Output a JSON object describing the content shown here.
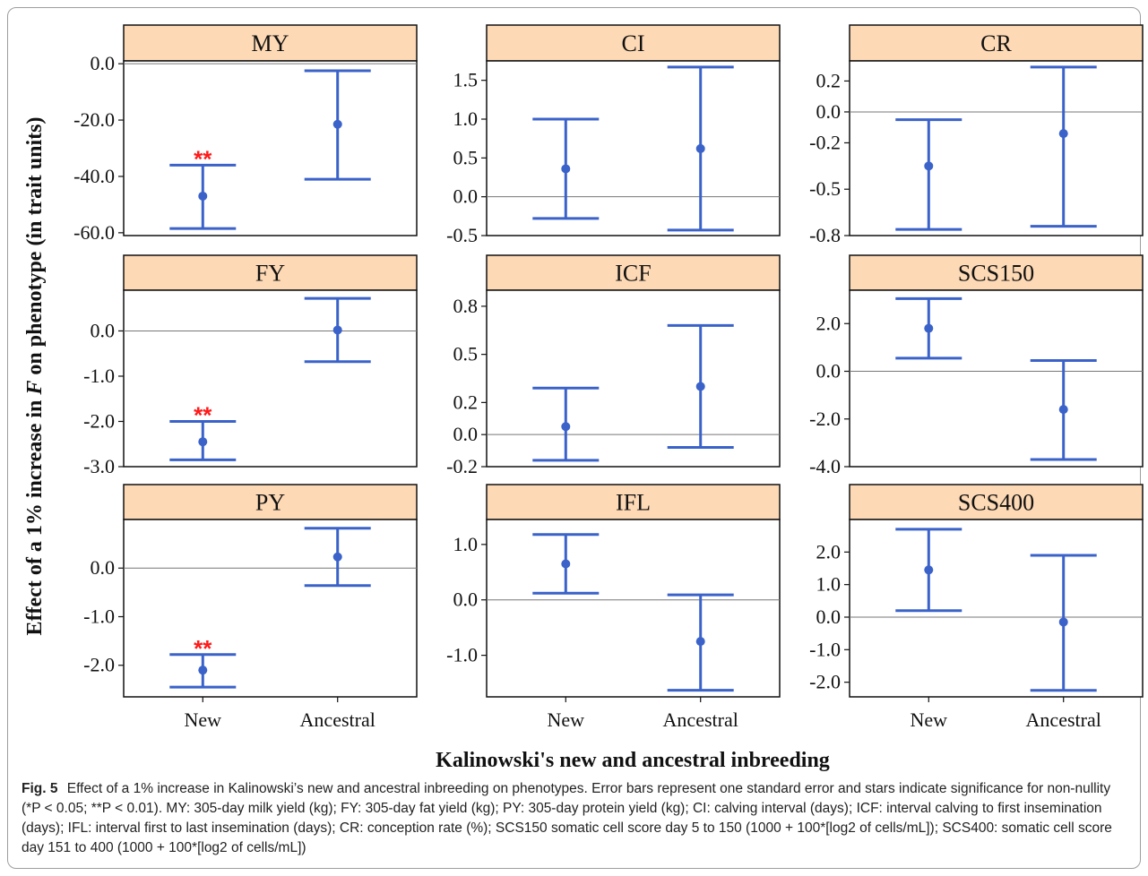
{
  "caption": {
    "label": "Fig. 5",
    "text": "Effect of a 1% increase in Kalinowski’s new and ancestral inbreeding on phenotypes. Error bars represent one standard error and stars indicate significance for non-nullity (*P < 0.05; **P < 0.01). MY: 305-day milk yield (kg); FY: 305-day fat yield (kg); PY: 305-day protein yield (kg); CI: calving interval (days); ICF: interval calving to first insemination (days); IFL: interval first to last insemination (days); CR: conception rate (%); SCS150 somatic cell score day 5 to 150 (1000 + 100*[log2 of cells/mL]); SCS400: somatic cell score day 151 to 400 (1000 + 100*[log2 of cells/mL])"
  },
  "chart_data": {
    "type": "errorbar",
    "xlabel": "Kalinowski's new and ancestral inbreeding",
    "ylabel_prefix": "Effect of a 1% increase in ",
    "ylabel_italic": "F",
    "ylabel_suffix": " on phenotype (in trait units)",
    "categories": [
      "New",
      "Ancestral"
    ],
    "panels": [
      {
        "title": "MY",
        "ylim": [
          -61,
          1
        ],
        "ticks": [
          0,
          -20,
          -40,
          -60
        ],
        "tick_labels": [
          "0.0",
          "-20.0",
          "-40.0",
          "-60.0"
        ],
        "points": [
          {
            "category": "New",
            "estimate": -47,
            "lower": -58.5,
            "upper": -36,
            "significance": "**"
          },
          {
            "category": "Ancestral",
            "estimate": -21.5,
            "lower": -41,
            "upper": -2.5,
            "significance": ""
          }
        ]
      },
      {
        "title": "CI",
        "ylim": [
          -0.5,
          1.75
        ],
        "ticks": [
          1.5,
          1.0,
          0.5,
          0.0,
          -0.5
        ],
        "tick_labels": [
          "1.5",
          "1.0",
          "0.5",
          "0.0",
          "-0.5"
        ],
        "points": [
          {
            "category": "New",
            "estimate": 0.36,
            "lower": -0.28,
            "upper": 1.0,
            "significance": ""
          },
          {
            "category": "Ancestral",
            "estimate": 0.62,
            "lower": -0.43,
            "upper": 1.67,
            "significance": ""
          }
        ]
      },
      {
        "title": "CR",
        "ylim": [
          -0.8,
          0.33
        ],
        "ticks": [
          0.2,
          0.0,
          -0.2,
          -0.5,
          -0.8
        ],
        "tick_labels": [
          "0.2",
          "0.0",
          "-0.2",
          "-0.5",
          "-0.8"
        ],
        "points": [
          {
            "category": "New",
            "estimate": -0.35,
            "lower": -0.76,
            "upper": -0.05,
            "significance": ""
          },
          {
            "category": "Ancestral",
            "estimate": -0.14,
            "lower": -0.74,
            "upper": 0.29,
            "significance": ""
          }
        ]
      },
      {
        "title": "FY",
        "ylim": [
          -3.0,
          0.9
        ],
        "ticks": [
          0,
          -1,
          -2,
          -3
        ],
        "tick_labels": [
          "0.0",
          "-1.0",
          "-2.0",
          "-3.0"
        ],
        "points": [
          {
            "category": "New",
            "estimate": -2.45,
            "lower": -2.85,
            "upper": -2.0,
            "significance": "**"
          },
          {
            "category": "Ancestral",
            "estimate": 0.02,
            "lower": -0.68,
            "upper": 0.72,
            "significance": ""
          }
        ]
      },
      {
        "title": "ICF",
        "ylim": [
          -0.2,
          0.9
        ],
        "ticks": [
          0.8,
          0.5,
          0.2,
          0.0,
          -0.2
        ],
        "tick_labels": [
          "0.8",
          "0.5",
          "0.2",
          "0.0",
          "-0.2"
        ],
        "points": [
          {
            "category": "New",
            "estimate": 0.05,
            "lower": -0.16,
            "upper": 0.29,
            "significance": ""
          },
          {
            "category": "Ancestral",
            "estimate": 0.3,
            "lower": -0.08,
            "upper": 0.68,
            "significance": ""
          }
        ]
      },
      {
        "title": "SCS150",
        "ylim": [
          -4.0,
          3.4
        ],
        "ticks": [
          2,
          0,
          -2,
          -4
        ],
        "tick_labels": [
          "2.0",
          "0.0",
          "-2.0",
          "-4.0"
        ],
        "points": [
          {
            "category": "New",
            "estimate": 1.8,
            "lower": 0.55,
            "upper": 3.05,
            "significance": ""
          },
          {
            "category": "Ancestral",
            "estimate": -1.6,
            "lower": -3.7,
            "upper": 0.45,
            "significance": ""
          }
        ]
      },
      {
        "title": "PY",
        "ylim": [
          -2.65,
          1.0
        ],
        "ticks": [
          0,
          -1,
          -2
        ],
        "tick_labels": [
          "0.0",
          "-1.0",
          "-2.0"
        ],
        "points": [
          {
            "category": "New",
            "estimate": -2.1,
            "lower": -2.45,
            "upper": -1.78,
            "significance": "**"
          },
          {
            "category": "Ancestral",
            "estimate": 0.23,
            "lower": -0.36,
            "upper": 0.82,
            "significance": ""
          }
        ]
      },
      {
        "title": "IFL",
        "ylim": [
          -1.75,
          1.45
        ],
        "ticks": [
          1,
          0,
          -1
        ],
        "tick_labels": [
          "1.0",
          "0.0",
          "-1.0"
        ],
        "points": [
          {
            "category": "New",
            "estimate": 0.65,
            "lower": 0.12,
            "upper": 1.18,
            "significance": ""
          },
          {
            "category": "Ancestral",
            "estimate": -0.75,
            "lower": -1.63,
            "upper": 0.09,
            "significance": ""
          }
        ]
      },
      {
        "title": "SCS400",
        "ylim": [
          -2.45,
          3.0
        ],
        "ticks": [
          2,
          1,
          0,
          -1,
          -2
        ],
        "tick_labels": [
          "2.0",
          "1.0",
          "0.0",
          "-1.0",
          "-2.0"
        ],
        "points": [
          {
            "category": "New",
            "estimate": 1.45,
            "lower": 0.2,
            "upper": 2.7,
            "significance": ""
          },
          {
            "category": "Ancestral",
            "estimate": -0.15,
            "lower": -2.25,
            "upper": 1.9,
            "significance": ""
          }
        ]
      }
    ],
    "reference_line": 0,
    "series_color": "#3a62c9",
    "significance_color": "#ff1a1a",
    "strip_color": "#fdd9b5"
  }
}
